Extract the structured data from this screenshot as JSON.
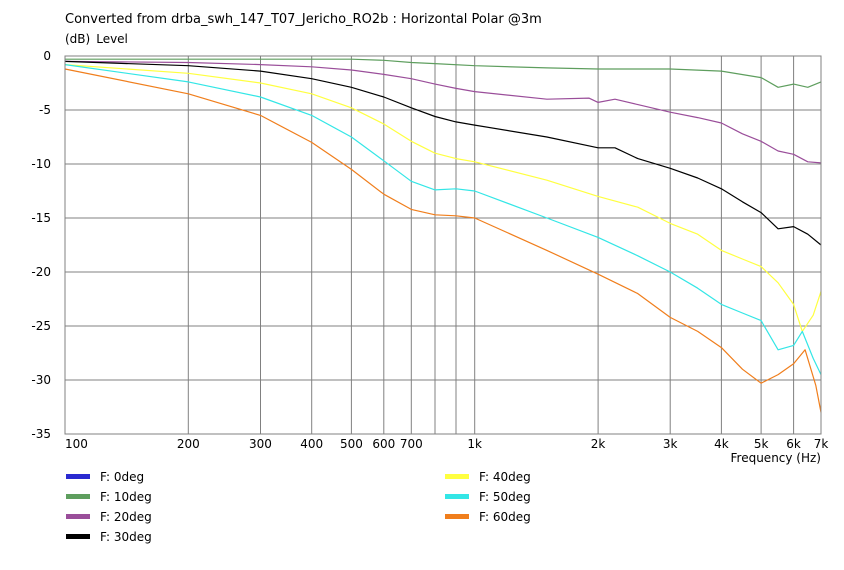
{
  "title": "Converted from drba_swh_147_T07_Jericho_RO2b : Horizontal Polar @3m",
  "ylabel_unit": "(dB)",
  "ylabel": "Level",
  "xlabel": "Frequency (Hz)",
  "chart_data": {
    "type": "line",
    "title": "Converted from drba_swh_147_T07_Jericho_RO2b : Horizontal Polar @3m",
    "xlabel": "Frequency (Hz)",
    "ylabel": "(dB) Level",
    "xscale": "log",
    "xlim": [
      100,
      7000
    ],
    "ylim": [
      -35,
      0
    ],
    "grid": true,
    "legend_position": "bottom",
    "x_ticks": [
      {
        "v": 100,
        "label": "100"
      },
      {
        "v": 200,
        "label": "200"
      },
      {
        "v": 300,
        "label": "300"
      },
      {
        "v": 400,
        "label": "400"
      },
      {
        "v": 500,
        "label": "500"
      },
      {
        "v": 600,
        "label": "600"
      },
      {
        "v": 700,
        "label": "700"
      },
      {
        "v": 1000,
        "label": "1k"
      },
      {
        "v": 2000,
        "label": "2k"
      },
      {
        "v": 3000,
        "label": "3k"
      },
      {
        "v": 4000,
        "label": "4k"
      },
      {
        "v": 5000,
        "label": "5k"
      },
      {
        "v": 6000,
        "label": "6k"
      },
      {
        "v": 7000,
        "label": "7k"
      }
    ],
    "x_gridlines": [
      100,
      200,
      300,
      400,
      500,
      600,
      700,
      800,
      900,
      1000,
      2000,
      3000,
      4000,
      5000,
      6000,
      7000
    ],
    "y_ticks": [
      0,
      -5,
      -10,
      -15,
      -20,
      -25,
      -30,
      -35
    ],
    "series": [
      {
        "name": "F: 0deg",
        "color": "#2a2ad0",
        "points": []
      },
      {
        "name": "F: 10deg",
        "color": "#5e9e5e",
        "points": [
          [
            100,
            -0.3
          ],
          [
            200,
            -0.3
          ],
          [
            300,
            -0.3
          ],
          [
            400,
            -0.3
          ],
          [
            500,
            -0.3
          ],
          [
            600,
            -0.4
          ],
          [
            700,
            -0.6
          ],
          [
            800,
            -0.7
          ],
          [
            1000,
            -0.9
          ],
          [
            1500,
            -1.1
          ],
          [
            2000,
            -1.2
          ],
          [
            3000,
            -1.2
          ],
          [
            4000,
            -1.4
          ],
          [
            5000,
            -2.0
          ],
          [
            5500,
            -2.9
          ],
          [
            6000,
            -2.6
          ],
          [
            6500,
            -2.9
          ],
          [
            7000,
            -2.4
          ]
        ]
      },
      {
        "name": "F: 20deg",
        "color": "#9a4e9a",
        "points": [
          [
            100,
            -0.5
          ],
          [
            200,
            -0.6
          ],
          [
            300,
            -0.8
          ],
          [
            400,
            -1.0
          ],
          [
            500,
            -1.3
          ],
          [
            600,
            -1.7
          ],
          [
            700,
            -2.1
          ],
          [
            800,
            -2.6
          ],
          [
            900,
            -3.0
          ],
          [
            1000,
            -3.3
          ],
          [
            1500,
            -4.0
          ],
          [
            1900,
            -3.9
          ],
          [
            2000,
            -4.3
          ],
          [
            2200,
            -4.0
          ],
          [
            2500,
            -4.5
          ],
          [
            3000,
            -5.2
          ],
          [
            3500,
            -5.7
          ],
          [
            4000,
            -6.2
          ],
          [
            4500,
            -7.2
          ],
          [
            5000,
            -7.9
          ],
          [
            5500,
            -8.8
          ],
          [
            6000,
            -9.1
          ],
          [
            6500,
            -9.8
          ],
          [
            7000,
            -9.9
          ]
        ]
      },
      {
        "name": "F: 30deg",
        "color": "#000000",
        "points": [
          [
            100,
            -0.5
          ],
          [
            200,
            -0.9
          ],
          [
            300,
            -1.4
          ],
          [
            400,
            -2.1
          ],
          [
            500,
            -2.9
          ],
          [
            600,
            -3.8
          ],
          [
            700,
            -4.8
          ],
          [
            800,
            -5.6
          ],
          [
            900,
            -6.1
          ],
          [
            1000,
            -6.4
          ],
          [
            1500,
            -7.5
          ],
          [
            2000,
            -8.5
          ],
          [
            2200,
            -8.5
          ],
          [
            2500,
            -9.5
          ],
          [
            3000,
            -10.4
          ],
          [
            3500,
            -11.3
          ],
          [
            4000,
            -12.3
          ],
          [
            4500,
            -13.5
          ],
          [
            5000,
            -14.5
          ],
          [
            5500,
            -16.0
          ],
          [
            6000,
            -15.8
          ],
          [
            6500,
            -16.5
          ],
          [
            7000,
            -17.5
          ]
        ]
      },
      {
        "name": "F: 40deg",
        "color": "#ffff40",
        "points": [
          [
            100,
            -0.8
          ],
          [
            200,
            -1.6
          ],
          [
            300,
            -2.5
          ],
          [
            400,
            -3.5
          ],
          [
            500,
            -4.8
          ],
          [
            600,
            -6.3
          ],
          [
            700,
            -7.9
          ],
          [
            800,
            -9.0
          ],
          [
            900,
            -9.5
          ],
          [
            1000,
            -9.8
          ],
          [
            1500,
            -11.5
          ],
          [
            2000,
            -13.0
          ],
          [
            2500,
            -14.0
          ],
          [
            3000,
            -15.5
          ],
          [
            3500,
            -16.5
          ],
          [
            4000,
            -18.0
          ],
          [
            4500,
            -18.8
          ],
          [
            5000,
            -19.5
          ],
          [
            5500,
            -21.0
          ],
          [
            6000,
            -23.0
          ],
          [
            6300,
            -25.5
          ],
          [
            6700,
            -24.0
          ],
          [
            7000,
            -21.8
          ]
        ]
      },
      {
        "name": "F: 50deg",
        "color": "#33e6e6",
        "points": [
          [
            100,
            -0.8
          ],
          [
            200,
            -2.4
          ],
          [
            300,
            -3.8
          ],
          [
            400,
            -5.5
          ],
          [
            500,
            -7.5
          ],
          [
            600,
            -9.7
          ],
          [
            700,
            -11.6
          ],
          [
            800,
            -12.4
          ],
          [
            900,
            -12.3
          ],
          [
            1000,
            -12.5
          ],
          [
            1500,
            -15.0
          ],
          [
            2000,
            -16.8
          ],
          [
            2500,
            -18.5
          ],
          [
            3000,
            -20.0
          ],
          [
            3500,
            -21.5
          ],
          [
            4000,
            -23.0
          ],
          [
            4500,
            -23.8
          ],
          [
            5000,
            -24.5
          ],
          [
            5500,
            -27.2
          ],
          [
            6000,
            -26.8
          ],
          [
            6300,
            -25.5
          ],
          [
            6700,
            -28.0
          ],
          [
            7000,
            -29.5
          ]
        ]
      },
      {
        "name": "F: 60deg",
        "color": "#f07e1c",
        "points": [
          [
            100,
            -1.2
          ],
          [
            200,
            -3.5
          ],
          [
            300,
            -5.5
          ],
          [
            400,
            -8.0
          ],
          [
            500,
            -10.5
          ],
          [
            600,
            -12.8
          ],
          [
            700,
            -14.2
          ],
          [
            800,
            -14.7
          ],
          [
            900,
            -14.8
          ],
          [
            1000,
            -15.0
          ],
          [
            1500,
            -18.0
          ],
          [
            2000,
            -20.2
          ],
          [
            2500,
            -22.0
          ],
          [
            3000,
            -24.2
          ],
          [
            3500,
            -25.5
          ],
          [
            4000,
            -27.0
          ],
          [
            4500,
            -29.0
          ],
          [
            5000,
            -30.3
          ],
          [
            5500,
            -29.5
          ],
          [
            6000,
            -28.5
          ],
          [
            6400,
            -27.2
          ],
          [
            6800,
            -30.5
          ],
          [
            7000,
            -33.0
          ]
        ]
      }
    ]
  }
}
